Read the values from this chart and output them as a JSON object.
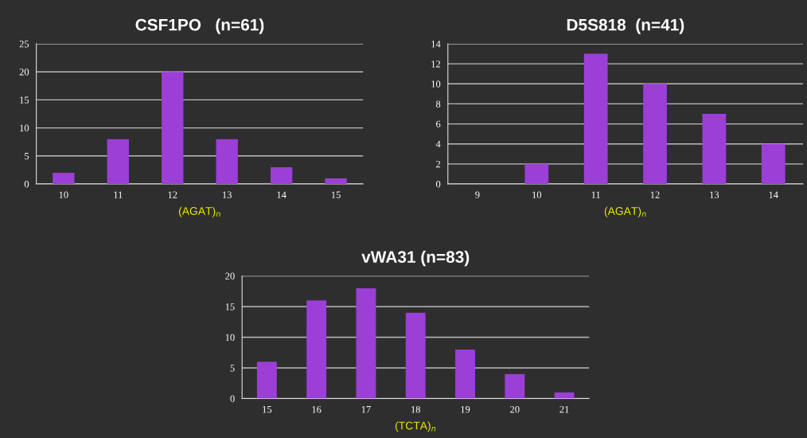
{
  "chart_data": [
    {
      "type": "bar",
      "title": "CSF1PO   (n=61)",
      "xlabel": "(AGAT)$_{n}$",
      "categories": [
        "10",
        "11",
        "12",
        "13",
        "14",
        "15"
      ],
      "values": [
        2,
        8,
        20,
        8,
        3,
        1
      ],
      "color": "#9b3fd6",
      "ylim": [
        0,
        25
      ],
      "yticks": [
        0,
        5,
        10,
        15,
        20,
        25
      ],
      "grid": "y"
    },
    {
      "type": "bar",
      "title": "D5S818  (n=41)",
      "xlabel": "(AGAT)$_{n}$",
      "categories": [
        "9",
        "10",
        "11",
        "12",
        "13",
        "14"
      ],
      "values": [
        0,
        2,
        13,
        10,
        7,
        4
      ],
      "color": "#9b3fd6",
      "ylim": [
        0,
        14
      ],
      "yticks": [
        0,
        2,
        4,
        6,
        8,
        10,
        12,
        14
      ],
      "grid": "y"
    },
    {
      "type": "bar",
      "title": "vWA31 (n=83)",
      "xlabel": "(TCTA)$_{n}$",
      "categories": [
        "15",
        "16",
        "17",
        "18",
        "19",
        "20",
        "21"
      ],
      "values": [
        6,
        16,
        18,
        14,
        8,
        4,
        1
      ],
      "color": "#9b3fd6",
      "ylim": [
        0,
        20
      ],
      "yticks": [
        0,
        5,
        10,
        15,
        20
      ],
      "grid": "y"
    }
  ]
}
